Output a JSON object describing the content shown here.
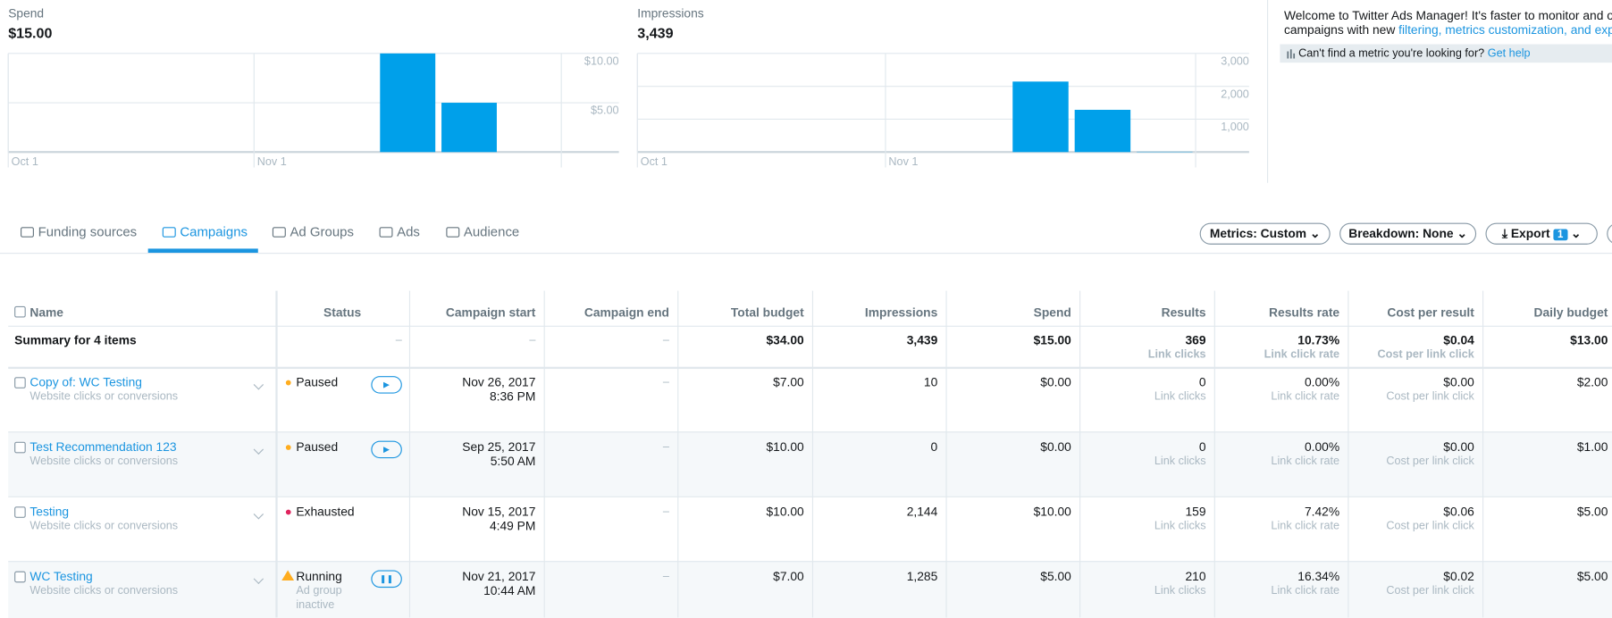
{
  "chart_data": [
    {
      "type": "bar",
      "title": "Spend",
      "subtitle": "$15.00",
      "color": "#00a0ea",
      "categories": [
        "Oct 1",
        null,
        null,
        null,
        "Nov 1",
        null,
        null,
        null,
        null
      ],
      "values": [
        0,
        0,
        0,
        0,
        0,
        0,
        10,
        5,
        0
      ],
      "ylim": [
        0,
        10
      ],
      "yticks": [
        {
          "value": 5,
          "label": "$5.00"
        },
        {
          "value": 10,
          "label": "$10.00"
        }
      ],
      "grid": true
    },
    {
      "type": "bar",
      "title": "Impressions",
      "subtitle": "3,439",
      "color": "#00a0ea",
      "categories": [
        "Oct 1",
        null,
        null,
        null,
        "Nov 1",
        null,
        null,
        null,
        null
      ],
      "values": [
        0,
        0,
        0,
        0,
        0,
        0,
        2144,
        1285,
        10
      ],
      "ylim": [
        0,
        3000
      ],
      "yticks": [
        {
          "value": 1000,
          "label": "1,000"
        },
        {
          "value": 2000,
          "label": "2,000"
        },
        {
          "value": 3000,
          "label": "3,000"
        }
      ],
      "grid": true
    }
  ],
  "welcome": {
    "line1": "Welcome to Twitter Ads Manager! It's faster to monitor and optim",
    "line2": "campaigns with new ",
    "link": "filtering, metrics customization, and export",
    "help": "Can't find a metric you're looking for?",
    "help_link": "Get help"
  },
  "tabs": {
    "items": [
      "Funding sources",
      "Campaigns",
      "Ad Groups",
      "Ads",
      "Audience"
    ],
    "active": 1
  },
  "buttons": {
    "metrics": "Metrics: Custom",
    "breakdown": "Breakdown: None",
    "export": "Export",
    "export_badge": "1"
  },
  "table": {
    "columns": [
      "Name",
      "Status",
      "Campaign start",
      "Campaign end",
      "Total budget",
      "Impressions",
      "Spend",
      "Results",
      "Results rate",
      "Cost per result",
      "Daily budget"
    ],
    "sub_labels": {
      "results": "Link clicks",
      "rate": "Link click rate",
      "cpr": "Cost per link click"
    },
    "summary": {
      "name": "Summary for 4 items",
      "status": "–",
      "start": "–",
      "end": "–",
      "budget": "$34.00",
      "impressions": "3,439",
      "spend": "$15.00",
      "results": "369",
      "rate": "10.73%",
      "cpr": "$0.04",
      "daily": "$13.00"
    },
    "rows": [
      {
        "name": "Copy of: WC Testing",
        "objective": "Website clicks or conversions",
        "status": "Paused",
        "status_color": "#ffad1f",
        "start_date": "Nov 26, 2017",
        "start_time": "8:36 PM",
        "end": "–",
        "budget": "$7.00",
        "impressions": "10",
        "spend": "$0.00",
        "results": "0",
        "rate": "0.00%",
        "cpr": "$0.00",
        "daily": "$2.00"
      },
      {
        "name": "Test Recommendation 123",
        "objective": "Website clicks or conversions",
        "status": "Paused",
        "status_color": "#ffad1f",
        "start_date": "Sep 25, 2017",
        "start_time": "5:50 AM",
        "end": "–",
        "budget": "$10.00",
        "impressions": "0",
        "spend": "$0.00",
        "results": "0",
        "rate": "0.00%",
        "cpr": "$0.00",
        "daily": "$1.00"
      },
      {
        "name": "Testing",
        "objective": "Website clicks or conversions",
        "status": "Exhausted",
        "status_color": "#e0245e",
        "start_date": "Nov 15, 2017",
        "start_time": "4:49 PM",
        "end": "–",
        "budget": "$10.00",
        "impressions": "2,144",
        "spend": "$10.00",
        "results": "159",
        "rate": "7.42%",
        "cpr": "$0.06",
        "daily": "$5.00"
      },
      {
        "name": "WC Testing",
        "objective": "Website clicks or conversions",
        "status": "Running",
        "status_note": "Ad group inactive",
        "status_color": "#ffad1f",
        "start_date": "Nov 21, 2017",
        "start_time": "10:44 AM",
        "end": "–",
        "budget": "$7.00",
        "impressions": "1,285",
        "spend": "$5.00",
        "results": "210",
        "rate": "16.34%",
        "cpr": "$0.02",
        "daily": "$5.00"
      }
    ]
  }
}
